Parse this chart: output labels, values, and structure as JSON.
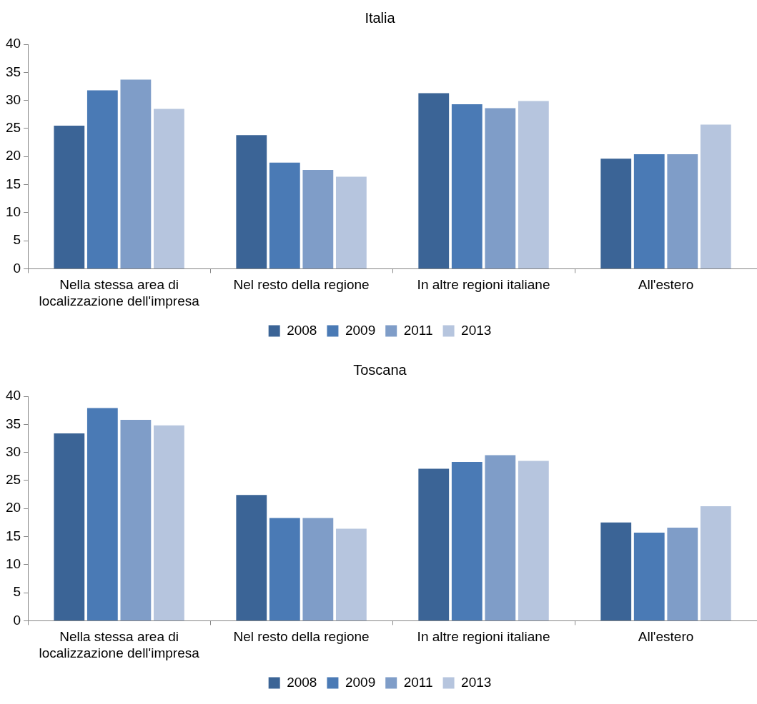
{
  "chart_data": [
    {
      "type": "bar",
      "title": "Italia",
      "categories": [
        "Nella stessa area di localizzazione dell'impresa",
        "Nel resto della regione",
        "In altre regioni italiane",
        "All'estero"
      ],
      "series": [
        {
          "name": "2008",
          "color": "#3b6496",
          "values": [
            25.5,
            23.8,
            31.3,
            19.6
          ]
        },
        {
          "name": "2009",
          "color": "#4a7ab5",
          "values": [
            31.8,
            18.9,
            29.3,
            20.4
          ]
        },
        {
          "name": "2011",
          "color": "#7f9dc8",
          "values": [
            33.7,
            17.6,
            28.6,
            20.4
          ]
        },
        {
          "name": "2013",
          "color": "#b6c5de",
          "values": [
            28.5,
            16.4,
            29.9,
            25.7
          ]
        }
      ],
      "ylim": [
        0,
        40
      ],
      "yticks": [
        0,
        5,
        10,
        15,
        20,
        25,
        30,
        35,
        40
      ],
      "legend": "bottom"
    },
    {
      "type": "bar",
      "title": "Toscana",
      "categories": [
        "Nella stessa area di localizzazione dell'impresa",
        "Nel resto della regione",
        "In altre regioni italiane",
        "All'estero"
      ],
      "series": [
        {
          "name": "2008",
          "color": "#3b6496",
          "values": [
            33.4,
            22.4,
            27.1,
            17.5
          ]
        },
        {
          "name": "2009",
          "color": "#4a7ab5",
          "values": [
            37.9,
            18.3,
            28.3,
            15.7
          ]
        },
        {
          "name": "2011",
          "color": "#7f9dc8",
          "values": [
            35.8,
            18.3,
            29.5,
            16.6
          ]
        },
        {
          "name": "2013",
          "color": "#b6c5de",
          "values": [
            34.8,
            16.4,
            28.5,
            20.4
          ]
        }
      ],
      "ylim": [
        0,
        40
      ],
      "yticks": [
        0,
        5,
        10,
        15,
        20,
        25,
        30,
        35,
        40
      ],
      "legend": "bottom"
    }
  ]
}
